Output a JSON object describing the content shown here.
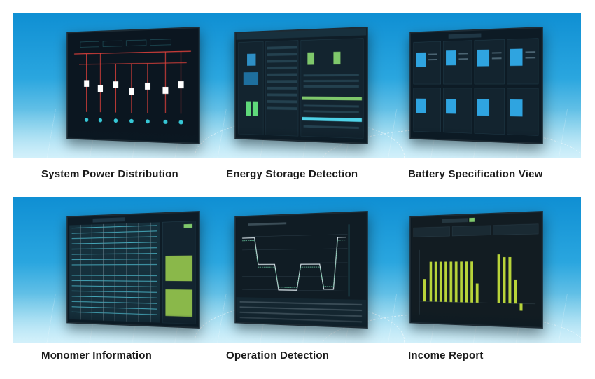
{
  "panels": [
    {
      "label": "System Power Distribution"
    },
    {
      "label": "Energy Storage Detection"
    },
    {
      "label": "Battery Specification View"
    },
    {
      "label": "Monomer Information"
    },
    {
      "label": "Operation Detection"
    },
    {
      "label": "Income Report"
    }
  ],
  "colors": {
    "banner_top": "#0f8fd3",
    "banner_bottom": "#c7ebf6",
    "screen_bg": "#0b1a24",
    "accent_red": "#e0413b",
    "accent_green": "#7fc86b",
    "accent_cyan": "#4fd3e8",
    "bar_yellow": "#b8d43a",
    "label_text": "#1a1a1a"
  }
}
